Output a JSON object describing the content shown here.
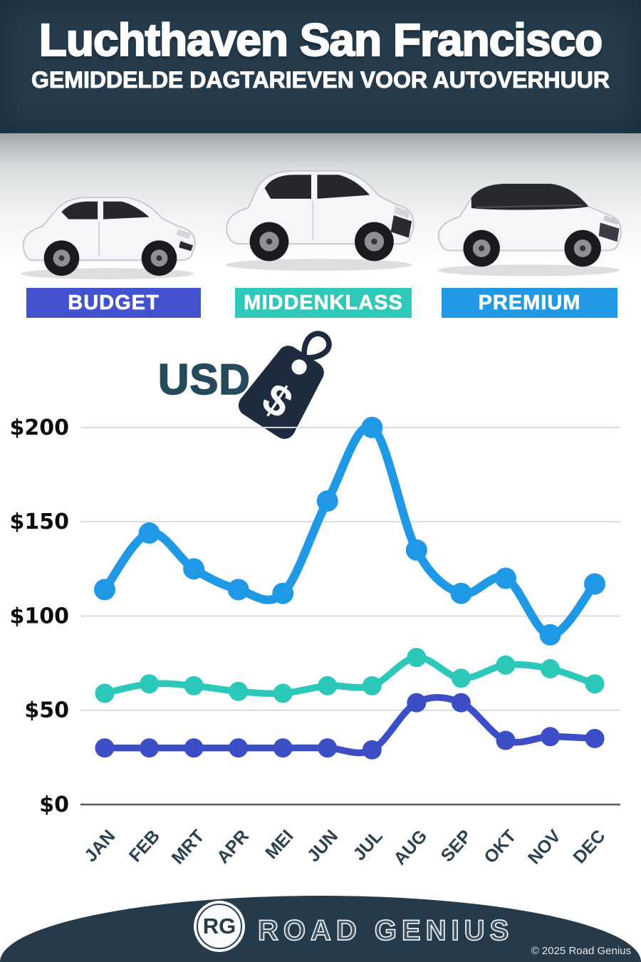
{
  "header": {
    "title": "Luchthaven San Francisco",
    "subtitle": "GEMIDDELDE DAGTARIEVEN VOOR AUTOVERHUUR",
    "bg_color": "#253b4c"
  },
  "vehicle_classes": [
    {
      "label": "BUDGET",
      "color": "#4353cf"
    },
    {
      "label": "MIDDENKLASS",
      "color": "#2ec9b9"
    },
    {
      "label": "PREMIUM",
      "color": "#2199e4"
    }
  ],
  "currency_tag": {
    "label": "USD",
    "symbol": "$"
  },
  "chart_data": {
    "type": "line",
    "categories": [
      "JAN",
      "FEB",
      "MRT",
      "APR",
      "MEI",
      "JUN",
      "JUL",
      "AUG",
      "SEP",
      "OKT",
      "NOV",
      "DEC"
    ],
    "series": [
      {
        "name": "PREMIUM",
        "color": "#1f98e6",
        "values": [
          114,
          144,
          125,
          114,
          112,
          161,
          200,
          135,
          112,
          120,
          90,
          117
        ]
      },
      {
        "name": "MIDDENKLASS",
        "color": "#2cc9bb",
        "values": [
          59,
          64,
          63,
          60,
          59,
          63,
          63,
          78,
          67,
          74,
          72,
          64
        ]
      },
      {
        "name": "BUDGET",
        "color": "#3c4ec5",
        "values": [
          30,
          30,
          30,
          30,
          30,
          30,
          29,
          54,
          54,
          34,
          36,
          35
        ]
      }
    ],
    "y_ticks": [
      {
        "label": "$0",
        "value": 0
      },
      {
        "label": "$50",
        "value": 50
      },
      {
        "label": "$100",
        "value": 100
      },
      {
        "label": "$150",
        "value": 150
      },
      {
        "label": "$200",
        "value": 200
      }
    ],
    "ylim": [
      0,
      210
    ],
    "grid": true,
    "currency": "USD",
    "legend_position": "badges-above-chart"
  },
  "footer": {
    "logo_text": "RG",
    "brand": "ROAD GENIUS",
    "copyright": "© 2025 Road Genius",
    "bg_color": "#253b4c"
  }
}
